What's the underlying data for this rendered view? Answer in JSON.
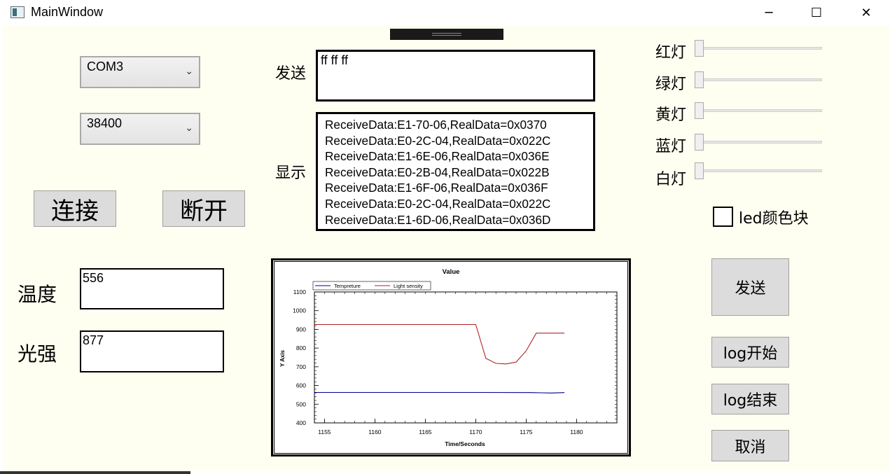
{
  "window": {
    "title": "MainWindow",
    "minimize_glyph": "─",
    "maximize_glyph": "☐",
    "close_glyph": "✕"
  },
  "serial": {
    "port": "COM3",
    "baud": "38400",
    "connect_label": "连接",
    "disconnect_label": "断开"
  },
  "send": {
    "label": "发送",
    "value": "ff ff ff"
  },
  "display": {
    "label": "显示",
    "lines": [
      "ReceiveData:E1-70-06,RealData=0x0370",
      "ReceiveData:E0-2C-04,RealData=0x022C",
      "ReceiveData:E1-6E-06,RealData=0x036E",
      "ReceiveData:E0-2B-04,RealData=0x022B",
      "ReceiveData:E1-6F-06,RealData=0x036F",
      "ReceiveData:E0-2C-04,RealData=0x022C",
      "ReceiveData:E1-6D-06,RealData=0x036D"
    ]
  },
  "sensors": {
    "temp_label": "温度",
    "temp_value": "556",
    "light_label": "光强",
    "light_value": "877"
  },
  "lights": {
    "red": "红灯",
    "green": "绿灯",
    "yellow": "黄灯",
    "blue": "蓝灯",
    "white": "白灯"
  },
  "led_checkbox": {
    "label": "led颜色块",
    "checked": false
  },
  "actions": {
    "send": "发送",
    "log_start": "log开始",
    "log_end": "log结束",
    "cancel": "取消"
  },
  "chart_data": {
    "type": "line",
    "title": "Value",
    "xlabel": "Time/Seconds",
    "ylabel": "Y Axis",
    "xlim": [
      1154,
      1184
    ],
    "ylim": [
      400,
      1100
    ],
    "xticks": [
      1155,
      1160,
      1165,
      1170,
      1175,
      1180
    ],
    "yticks": [
      400,
      500,
      600,
      700,
      800,
      900,
      1000,
      1100
    ],
    "legend_position": "top-left",
    "series": [
      {
        "name": "Tempreture",
        "color": "#00008b",
        "x": [
          1154,
          1170,
          1175.5,
          1176.5,
          1177.5,
          1178.8
        ],
        "y": [
          563,
          563,
          562,
          561,
          560,
          562
        ]
      },
      {
        "name": "Light sensity",
        "color": "#b22222",
        "x": [
          1154,
          1170,
          1171,
          1172,
          1173,
          1174,
          1175,
          1176,
          1178.8
        ],
        "y": [
          926,
          926,
          745,
          718,
          715,
          725,
          785,
          880,
          880
        ]
      }
    ]
  }
}
